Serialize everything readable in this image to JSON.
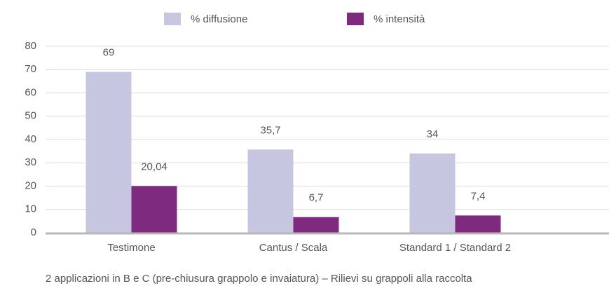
{
  "chart_data": {
    "type": "bar",
    "categories": [
      "Testimone",
      "Cantus / Scala",
      "Standard 1 / Standard 2"
    ],
    "series": [
      {
        "name": "% diffusione",
        "color": "#c6c6e1",
        "values": [
          69,
          35.7,
          34
        ],
        "value_labels": [
          "69",
          "35,7",
          "34"
        ]
      },
      {
        "name": "% intensità",
        "color": "#7d2a7f",
        "values": [
          20.04,
          6.7,
          7.4
        ],
        "value_labels": [
          "20,04",
          "6,7",
          "7,4"
        ]
      }
    ],
    "ylim": [
      0,
      80
    ],
    "yticks": [
      0,
      10,
      20,
      30,
      40,
      50,
      60,
      70,
      80
    ],
    "grid": true,
    "legend": "top",
    "caption": "2 applicazioni in B e C (pre-chiusura grappolo e invaiatura) – Rilievi su grappoli alla raccolta"
  }
}
